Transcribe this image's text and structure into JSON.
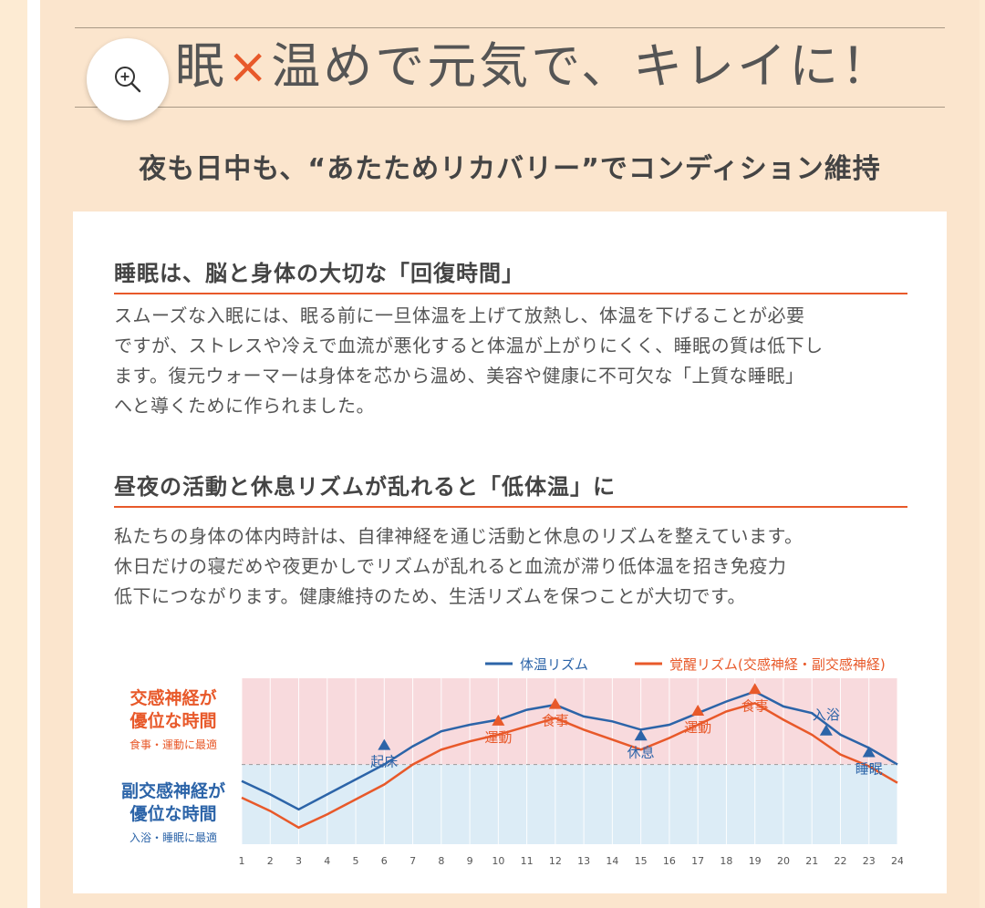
{
  "header": {
    "title_lead": "眠",
    "title_x": "×",
    "title_rest": "温めで元気で、キレイに！",
    "subtitle": "夜も日中も、“あたためリカバリー”でコンディション維持"
  },
  "sections": [
    {
      "heading": "睡眠は、脳と身体の大切な「回復時間」",
      "lines": [
        "スムーズな入眠には、眠る前に一旦体温を上げて放熱し、体温を下げることが必要",
        "ですが、ストレスや冷えで血流が悪化すると体温が上がりにくく、睡眠の質は低下し",
        "ます。復元ウォーマーは身体を芯から温め、美容や健康に不可欠な「上質な睡眠」",
        "へと導くために作られました。"
      ]
    },
    {
      "heading": "昼夜の活動と休息リズムが乱れると「低体温」に",
      "lines": [
        "私たちの身体の体内時計は、自律神経を通じ活動と休息のリズムを整えています。",
        "休日だけの寝だめや夜更かしでリズムが乱れると血流が滞り低体温を招き免疫力",
        "低下につながります。健康維持のため、生活リズムを保つことが大切です。"
      ]
    }
  ],
  "chart_data": {
    "type": "line",
    "x": [
      1,
      2,
      3,
      4,
      5,
      6,
      7,
      8,
      9,
      10,
      11,
      12,
      13,
      14,
      15,
      16,
      17,
      18,
      19,
      20,
      21,
      22,
      23,
      24
    ],
    "xlim": [
      1,
      24
    ],
    "ylim": [
      0,
      10
    ],
    "legend_position": "top-right",
    "series": [
      {
        "name": "体温リズム",
        "color": "#2c64a8",
        "values": [
          3.8,
          3.0,
          2.1,
          3.0,
          3.9,
          4.8,
          5.9,
          6.8,
          7.2,
          7.5,
          8.1,
          8.4,
          7.7,
          7.4,
          6.9,
          7.2,
          7.9,
          8.6,
          9.2,
          8.3,
          7.9,
          6.6,
          5.8,
          4.8
        ]
      },
      {
        "name": "覚醒リズム(交感神経・副交感神経)",
        "color": "#e8592a",
        "values": [
          2.8,
          2.0,
          1.0,
          1.8,
          2.7,
          3.6,
          4.8,
          5.7,
          6.2,
          6.6,
          7.1,
          7.6,
          6.9,
          6.3,
          5.7,
          6.4,
          7.2,
          8.0,
          8.5,
          7.5,
          6.6,
          5.4,
          4.7,
          3.7
        ]
      }
    ],
    "zones": {
      "upper_label_1": "交感神経が",
      "upper_label_2": "優位な時間",
      "upper_note": "食事・運動に最適",
      "lower_label_1": "副交感神経が",
      "lower_label_2": "優位な時間",
      "lower_note": "入浴・睡眠に最適",
      "upper_color": "#f8dadd",
      "lower_color": "#dcecf6",
      "divider_value": 4.8
    },
    "annotations": [
      {
        "x": 6,
        "label": "起床",
        "series": "体温リズム",
        "color": "#2c64a8",
        "position": "below"
      },
      {
        "x": 10,
        "label": "運動",
        "series": "覚醒リズム(交感神経・副交感神経)",
        "color": "#e8592a",
        "position": "below"
      },
      {
        "x": 12,
        "label": "食事",
        "series": "覚醒リズム(交感神経・副交感神経)",
        "color": "#e8592a",
        "position": "below"
      },
      {
        "x": 15,
        "label": "休息",
        "series": "覚醒リズム(交感神経・副交感神経)",
        "color": "#2c64a8",
        "position": "below"
      },
      {
        "x": 17,
        "label": "運動",
        "series": "覚醒リズム(交感神経・副交感神経)",
        "color": "#e8592a",
        "position": "below"
      },
      {
        "x": 19,
        "label": "食事",
        "series": "覚醒リズム(交感神経・副交感神経)",
        "color": "#e8592a",
        "position": "below"
      },
      {
        "x": 21.5,
        "label": "入浴",
        "series": "覚醒リズム(交感神経・副交感神経)",
        "color": "#2c64a8",
        "position": "above"
      },
      {
        "x": 23,
        "label": "睡眠",
        "series": "覚醒リズム(交感神経・副交感神経)",
        "color": "#2c64a8",
        "position": "below"
      }
    ]
  }
}
